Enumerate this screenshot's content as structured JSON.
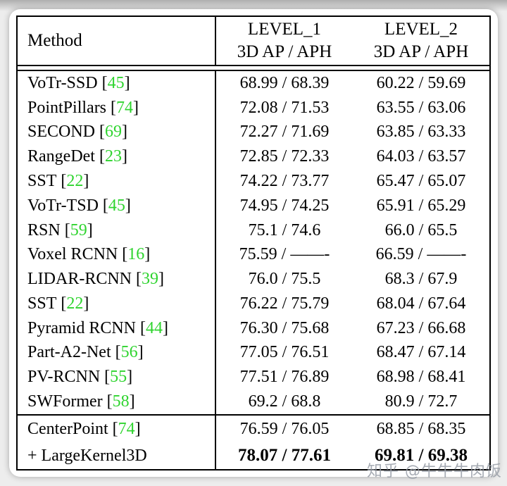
{
  "colors": {
    "page_background": "#ededed",
    "card_background": "#ffffff",
    "table_border": "#000000",
    "citation_green": "#2fd42f"
  },
  "table": {
    "header": {
      "method_label": "Method",
      "columns": [
        {
          "title": "LEVEL_1",
          "subtitle": "3D AP / APH"
        },
        {
          "title": "LEVEL_2",
          "subtitle": "3D AP / APH"
        }
      ]
    },
    "rows": [
      {
        "method": "VoTr-SSD",
        "cite": "45",
        "level1": "68.99 / 68.39",
        "level2": "60.22 / 59.69",
        "bold": false,
        "group": 1
      },
      {
        "method": "PointPillars",
        "cite": "74",
        "level1": "72.08 / 71.53",
        "level2": "63.55 / 63.06",
        "bold": false,
        "group": 1
      },
      {
        "method": "SECOND",
        "cite": "69",
        "level1": "72.27 / 71.69",
        "level2": "63.85 / 63.33",
        "bold": false,
        "group": 1
      },
      {
        "method": "RangeDet",
        "cite": "23",
        "level1": "72.85 / 72.33",
        "level2": "64.03 / 63.57",
        "bold": false,
        "group": 1
      },
      {
        "method": "SST",
        "cite": "22",
        "level1": "74.22 / 73.77",
        "level2": "65.47 / 65.07",
        "bold": false,
        "group": 1
      },
      {
        "method": "VoTr-TSD",
        "cite": "45",
        "level1": "74.95 / 74.25",
        "level2": "65.91 / 65.29",
        "bold": false,
        "group": 1
      },
      {
        "method": "RSN",
        "cite": "59",
        "level1": "75.1 / 74.6",
        "level2": "66.0 / 65.5",
        "bold": false,
        "group": 1
      },
      {
        "method": "Voxel RCNN",
        "cite": "16",
        "level1": "75.59 / ——-",
        "level2": "66.59 / ——-",
        "bold": false,
        "group": 1
      },
      {
        "method": "LIDAR-RCNN",
        "cite": "39",
        "level1": "76.0 / 75.5",
        "level2": "68.3 / 67.9",
        "bold": false,
        "group": 1
      },
      {
        "method": "SST",
        "cite": "22",
        "level1": "76.22 / 75.79",
        "level2": "68.04 / 67.64",
        "bold": false,
        "group": 1
      },
      {
        "method": "Pyramid RCNN",
        "cite": "44",
        "level1": "76.30 / 75.68",
        "level2": "67.23 / 66.68",
        "bold": false,
        "group": 1
      },
      {
        "method": "Part-A2-Net",
        "cite": "56",
        "level1": "77.05 / 76.51",
        "level2": "68.47 / 67.14",
        "bold": false,
        "group": 1
      },
      {
        "method": "PV-RCNN",
        "cite": "55",
        "level1": "77.51 / 76.89",
        "level2": "68.98 / 68.41",
        "bold": false,
        "group": 1
      },
      {
        "method": "SWFormer",
        "cite": "58",
        "level1": "69.2 / 68.8",
        "level2": "80.9 / 72.7",
        "bold": false,
        "group": 1
      },
      {
        "method": "CenterPoint",
        "cite": "74",
        "level1": "76.59 / 76.05",
        "level2": "68.85 / 68.35",
        "bold": false,
        "group": 2
      },
      {
        "method": "+ LargeKernel3D",
        "cite": null,
        "level1": "78.07 / 77.61",
        "level2": "69.81 / 69.38",
        "bold": true,
        "group": 2
      }
    ]
  },
  "watermark": {
    "text": "知乎 @牛牛牛肉饭"
  }
}
